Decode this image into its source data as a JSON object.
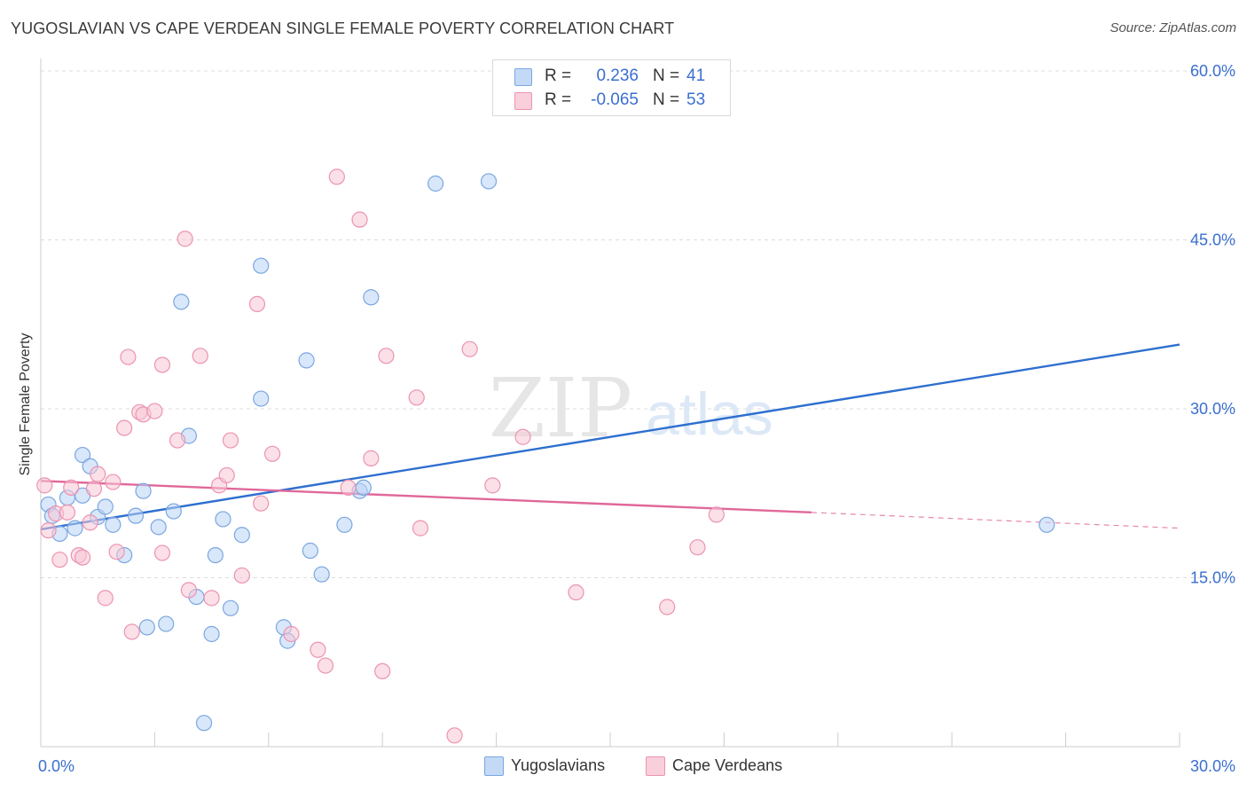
{
  "title": "YUGOSLAVIAN VS CAPE VERDEAN SINGLE FEMALE POVERTY CORRELATION CHART",
  "source": "Source: ZipAtlas.com",
  "watermark": {
    "zip": "ZIP",
    "atlas": "atlas"
  },
  "legend": {
    "rows": [
      {
        "r_label": "R = ",
        "r_value": "0.236",
        "n_label": "N = ",
        "n_value": "41"
      },
      {
        "r_label": "R = ",
        "r_value": "-0.065",
        "n_label": "N = ",
        "n_value": "53"
      }
    ]
  },
  "bottom_legend": [
    "Yugoslavians",
    "Cape Verdeans"
  ],
  "colors": {
    "blue_fill": "#b9d3f5",
    "blue_stroke": "#7aa7e0",
    "blue_line": "#2e6fcf",
    "pink_fill": "#f7c6d5",
    "pink_stroke": "#ec93b0",
    "pink_line": "#e0689a",
    "tick_label": "#3a6fcf",
    "grid": "#dddddd"
  },
  "chart_data": {
    "type": "scatter",
    "title": "YUGOSLAVIAN VS CAPE VERDEAN SINGLE FEMALE POVERTY CORRELATION CHART",
    "xlabel": "",
    "ylabel": "Single Female Poverty",
    "xlim": [
      0,
      30
    ],
    "ylim": [
      0,
      60
    ],
    "x_tick_labels": [
      {
        "value": 0,
        "label": "0.0%"
      },
      {
        "value": 30,
        "label": "30.0%"
      }
    ],
    "y_tick_labels": [
      {
        "value": 15,
        "label": "15.0%"
      },
      {
        "value": 30,
        "label": "30.0%"
      },
      {
        "value": 45,
        "label": "45.0%"
      },
      {
        "value": 60,
        "label": "60.0%"
      }
    ],
    "series": [
      {
        "name": "Yugoslavians",
        "r": 0.236,
        "n": 41,
        "trend": {
          "x0": 0,
          "y0": 19.3,
          "x1": 30,
          "y1": 35.7
        },
        "points": [
          [
            0.2,
            21.5
          ],
          [
            0.3,
            20.5
          ],
          [
            0.5,
            18.9
          ],
          [
            0.7,
            22.1
          ],
          [
            0.9,
            19.4
          ],
          [
            1.1,
            22.3
          ],
          [
            1.1,
            25.9
          ],
          [
            1.3,
            24.9
          ],
          [
            1.5,
            20.4
          ],
          [
            1.7,
            21.3
          ],
          [
            1.9,
            19.7
          ],
          [
            2.2,
            17.0
          ],
          [
            2.5,
            20.5
          ],
          [
            2.7,
            22.7
          ],
          [
            2.8,
            10.6
          ],
          [
            3.1,
            19.5
          ],
          [
            3.3,
            10.9
          ],
          [
            3.5,
            20.9
          ],
          [
            3.7,
            39.5
          ],
          [
            3.9,
            27.6
          ],
          [
            4.1,
            13.3
          ],
          [
            4.3,
            2.1
          ],
          [
            4.5,
            10.0
          ],
          [
            4.6,
            17.0
          ],
          [
            4.8,
            20.2
          ],
          [
            5.0,
            12.3
          ],
          [
            5.3,
            18.8
          ],
          [
            5.8,
            30.9
          ],
          [
            5.8,
            42.7
          ],
          [
            6.4,
            10.6
          ],
          [
            6.5,
            9.4
          ],
          [
            7.0,
            34.3
          ],
          [
            7.1,
            17.4
          ],
          [
            7.4,
            15.3
          ],
          [
            8.0,
            19.7
          ],
          [
            8.4,
            22.7
          ],
          [
            8.5,
            23.0
          ],
          [
            8.7,
            39.9
          ],
          [
            10.4,
            50.0
          ],
          [
            11.8,
            50.2
          ],
          [
            26.5,
            19.7
          ]
        ]
      },
      {
        "name": "Cape Verdeans",
        "r": -0.065,
        "n": 53,
        "trend": {
          "x0": 0,
          "y0": 23.6,
          "x1": 20.3,
          "y1": 20.8,
          "dash_x1": 30,
          "dash_y1": 19.4
        },
        "points": [
          [
            0.1,
            23.2
          ],
          [
            0.2,
            19.2
          ],
          [
            0.4,
            20.7
          ],
          [
            0.5,
            16.6
          ],
          [
            0.7,
            20.8
          ],
          [
            0.8,
            23.0
          ],
          [
            1.0,
            17.0
          ],
          [
            1.1,
            16.8
          ],
          [
            1.3,
            19.9
          ],
          [
            1.4,
            22.9
          ],
          [
            1.5,
            24.2
          ],
          [
            1.7,
            13.2
          ],
          [
            1.9,
            23.5
          ],
          [
            2.0,
            17.3
          ],
          [
            2.2,
            28.3
          ],
          [
            2.3,
            34.6
          ],
          [
            2.4,
            10.2
          ],
          [
            2.6,
            29.7
          ],
          [
            2.7,
            29.5
          ],
          [
            3.0,
            29.8
          ],
          [
            3.2,
            33.9
          ],
          [
            3.2,
            17.2
          ],
          [
            3.6,
            27.2
          ],
          [
            3.8,
            45.1
          ],
          [
            3.9,
            13.9
          ],
          [
            4.2,
            34.7
          ],
          [
            4.5,
            13.2
          ],
          [
            4.7,
            23.2
          ],
          [
            4.9,
            24.1
          ],
          [
            5.0,
            27.2
          ],
          [
            5.3,
            15.2
          ],
          [
            5.7,
            39.3
          ],
          [
            5.8,
            21.6
          ],
          [
            6.1,
            26.0
          ],
          [
            6.6,
            10.0
          ],
          [
            7.3,
            8.6
          ],
          [
            7.5,
            7.2
          ],
          [
            7.8,
            50.6
          ],
          [
            8.1,
            23.0
          ],
          [
            8.4,
            46.8
          ],
          [
            8.7,
            25.6
          ],
          [
            9.0,
            6.7
          ],
          [
            9.1,
            34.7
          ],
          [
            9.9,
            31.0
          ],
          [
            10.0,
            19.4
          ],
          [
            10.9,
            1.0
          ],
          [
            11.3,
            35.3
          ],
          [
            11.9,
            23.2
          ],
          [
            12.7,
            27.5
          ],
          [
            14.1,
            13.7
          ],
          [
            16.5,
            12.4
          ],
          [
            17.3,
            17.7
          ],
          [
            17.8,
            20.6
          ]
        ]
      }
    ]
  }
}
